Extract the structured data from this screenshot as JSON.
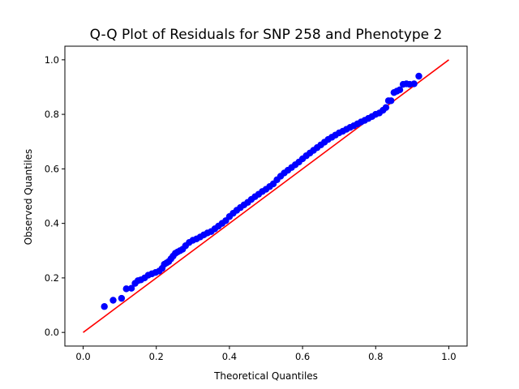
{
  "chart_data": {
    "type": "scatter",
    "title": "Q-Q Plot of Residuals for SNP 258 and Phenotype 2",
    "xlabel": "Theoretical Quantiles",
    "ylabel": "Observed Quantiles",
    "xlim": [
      -0.05,
      1.05
    ],
    "ylim": [
      -0.05,
      1.05
    ],
    "x_ticks": [
      "0.0",
      "0.2",
      "0.4",
      "0.6",
      "0.8",
      "1.0"
    ],
    "y_ticks": [
      "0.0",
      "0.2",
      "0.4",
      "0.6",
      "0.8",
      "1.0"
    ],
    "grid": false,
    "colors": {
      "points": "#0000ff",
      "reference_line": "#ff0000"
    },
    "reference_line": {
      "x": [
        0.0,
        1.0
      ],
      "y": [
        0.0,
        1.0
      ]
    },
    "series": [
      {
        "x": [
          0.058,
          0.082,
          0.105,
          0.118,
          0.132,
          0.142,
          0.15,
          0.158,
          0.168,
          0.178,
          0.188,
          0.198,
          0.208,
          0.216,
          0.222,
          0.228,
          0.234,
          0.24,
          0.246,
          0.252,
          0.258,
          0.265,
          0.272,
          0.28,
          0.29,
          0.3,
          0.31,
          0.32,
          0.33,
          0.34,
          0.35,
          0.36,
          0.37,
          0.38,
          0.39,
          0.4,
          0.41,
          0.42,
          0.43,
          0.44,
          0.45,
          0.46,
          0.47,
          0.48,
          0.49,
          0.5,
          0.51,
          0.52,
          0.53,
          0.54,
          0.55,
          0.56,
          0.57,
          0.58,
          0.59,
          0.6,
          0.61,
          0.62,
          0.63,
          0.64,
          0.65,
          0.66,
          0.67,
          0.68,
          0.69,
          0.7,
          0.71,
          0.72,
          0.73,
          0.74,
          0.75,
          0.76,
          0.77,
          0.78,
          0.79,
          0.8,
          0.81,
          0.82,
          0.828,
          0.835,
          0.842,
          0.85,
          0.858,
          0.866,
          0.875,
          0.884,
          0.893,
          0.905,
          0.918
        ],
        "y": [
          0.095,
          0.118,
          0.125,
          0.16,
          0.162,
          0.18,
          0.19,
          0.193,
          0.2,
          0.21,
          0.215,
          0.22,
          0.225,
          0.235,
          0.25,
          0.255,
          0.26,
          0.27,
          0.28,
          0.29,
          0.295,
          0.3,
          0.305,
          0.318,
          0.33,
          0.338,
          0.343,
          0.35,
          0.358,
          0.365,
          0.37,
          0.38,
          0.39,
          0.4,
          0.41,
          0.425,
          0.437,
          0.448,
          0.458,
          0.468,
          0.477,
          0.488,
          0.498,
          0.507,
          0.517,
          0.525,
          0.535,
          0.545,
          0.56,
          0.573,
          0.585,
          0.595,
          0.605,
          0.615,
          0.625,
          0.637,
          0.648,
          0.658,
          0.668,
          0.678,
          0.688,
          0.698,
          0.708,
          0.716,
          0.724,
          0.732,
          0.738,
          0.745,
          0.752,
          0.758,
          0.765,
          0.772,
          0.778,
          0.785,
          0.792,
          0.8,
          0.805,
          0.815,
          0.825,
          0.85,
          0.85,
          0.88,
          0.885,
          0.89,
          0.91,
          0.912,
          0.91,
          0.912,
          0.94
        ]
      }
    ]
  }
}
